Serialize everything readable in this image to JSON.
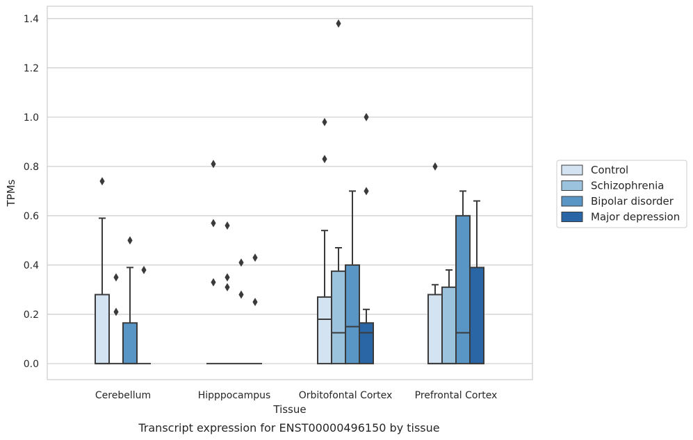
{
  "caption": "Transcript expression for ENST00000496150 by tissue",
  "chart_data": {
    "type": "boxplot",
    "xlabel": "Tissue",
    "ylabel": "TPMs",
    "ylim": [
      -0.065,
      1.45
    ],
    "yticks": [
      0.0,
      0.2,
      0.4,
      0.6,
      0.8,
      1.0,
      1.2,
      1.4
    ],
    "ytick_labels": [
      "0.0",
      "0.2",
      "0.4",
      "0.6",
      "0.8",
      "1.0",
      "1.2",
      "1.4"
    ],
    "grid": "horizontal",
    "legend_position": "right",
    "categories": [
      "Cerebellum",
      "Hipppocampus",
      "Orbitofontal Cortex",
      "Prefrontal Cortex"
    ],
    "series": [
      {
        "name": "Control",
        "color": "#d4e3f2",
        "boxes": [
          {
            "q1": 0.0,
            "median": 0.0,
            "q3": 0.28,
            "whisker_low": 0.0,
            "whisker_high": 0.59,
            "outliers": [
              0.74
            ]
          },
          {
            "q1": 0.0,
            "median": 0.0,
            "q3": 0.0,
            "whisker_low": 0.0,
            "whisker_high": 0.0,
            "outliers": [
              0.81,
              0.57,
              0.33
            ]
          },
          {
            "q1": 0.0,
            "median": 0.18,
            "q3": 0.27,
            "whisker_low": 0.0,
            "whisker_high": 0.54,
            "outliers": [
              0.98,
              0.83
            ]
          },
          {
            "q1": 0.0,
            "median": 0.0,
            "q3": 0.28,
            "whisker_low": 0.0,
            "whisker_high": 0.32,
            "outliers": [
              0.8
            ]
          }
        ]
      },
      {
        "name": "Schizophrenia",
        "color": "#9cc3de",
        "boxes": [
          {
            "q1": 0.0,
            "median": 0.0,
            "q3": 0.0,
            "whisker_low": 0.0,
            "whisker_high": 0.0,
            "outliers": [
              0.35,
              0.21
            ]
          },
          {
            "q1": 0.0,
            "median": 0.0,
            "q3": 0.0,
            "whisker_low": 0.0,
            "whisker_high": 0.0,
            "outliers": [
              0.56,
              0.35,
              0.31
            ]
          },
          {
            "q1": 0.0,
            "median": 0.125,
            "q3": 0.375,
            "whisker_low": 0.0,
            "whisker_high": 0.47,
            "outliers": [
              1.38
            ]
          },
          {
            "q1": 0.0,
            "median": 0.0,
            "q3": 0.31,
            "whisker_low": 0.0,
            "whisker_high": 0.38,
            "outliers": []
          }
        ]
      },
      {
        "name": "Bipolar disorder",
        "color": "#5996c6",
        "boxes": [
          {
            "q1": 0.0,
            "median": 0.0,
            "q3": 0.165,
            "whisker_low": 0.0,
            "whisker_high": 0.39,
            "outliers": [
              0.5
            ]
          },
          {
            "q1": 0.0,
            "median": 0.0,
            "q3": 0.0,
            "whisker_low": 0.0,
            "whisker_high": 0.0,
            "outliers": [
              0.41,
              0.28
            ]
          },
          {
            "q1": 0.0,
            "median": 0.15,
            "q3": 0.4,
            "whisker_low": 0.0,
            "whisker_high": 0.7,
            "outliers": []
          },
          {
            "q1": 0.0,
            "median": 0.125,
            "q3": 0.6,
            "whisker_low": 0.0,
            "whisker_high": 0.7,
            "outliers": []
          }
        ]
      },
      {
        "name": "Major depression",
        "color": "#2a66a6",
        "boxes": [
          {
            "q1": 0.0,
            "median": 0.0,
            "q3": 0.0,
            "whisker_low": 0.0,
            "whisker_high": 0.0,
            "outliers": [
              0.38
            ]
          },
          {
            "q1": 0.0,
            "median": 0.0,
            "q3": 0.0,
            "whisker_low": 0.0,
            "whisker_high": 0.0,
            "outliers": [
              0.43,
              0.25
            ]
          },
          {
            "q1": 0.0,
            "median": 0.125,
            "q3": 0.165,
            "whisker_low": 0.0,
            "whisker_high": 0.22,
            "outliers": [
              1.0,
              0.7
            ]
          },
          {
            "q1": 0.0,
            "median": 0.0,
            "q3": 0.39,
            "whisker_low": 0.0,
            "whisker_high": 0.66,
            "outliers": []
          }
        ]
      }
    ]
  }
}
